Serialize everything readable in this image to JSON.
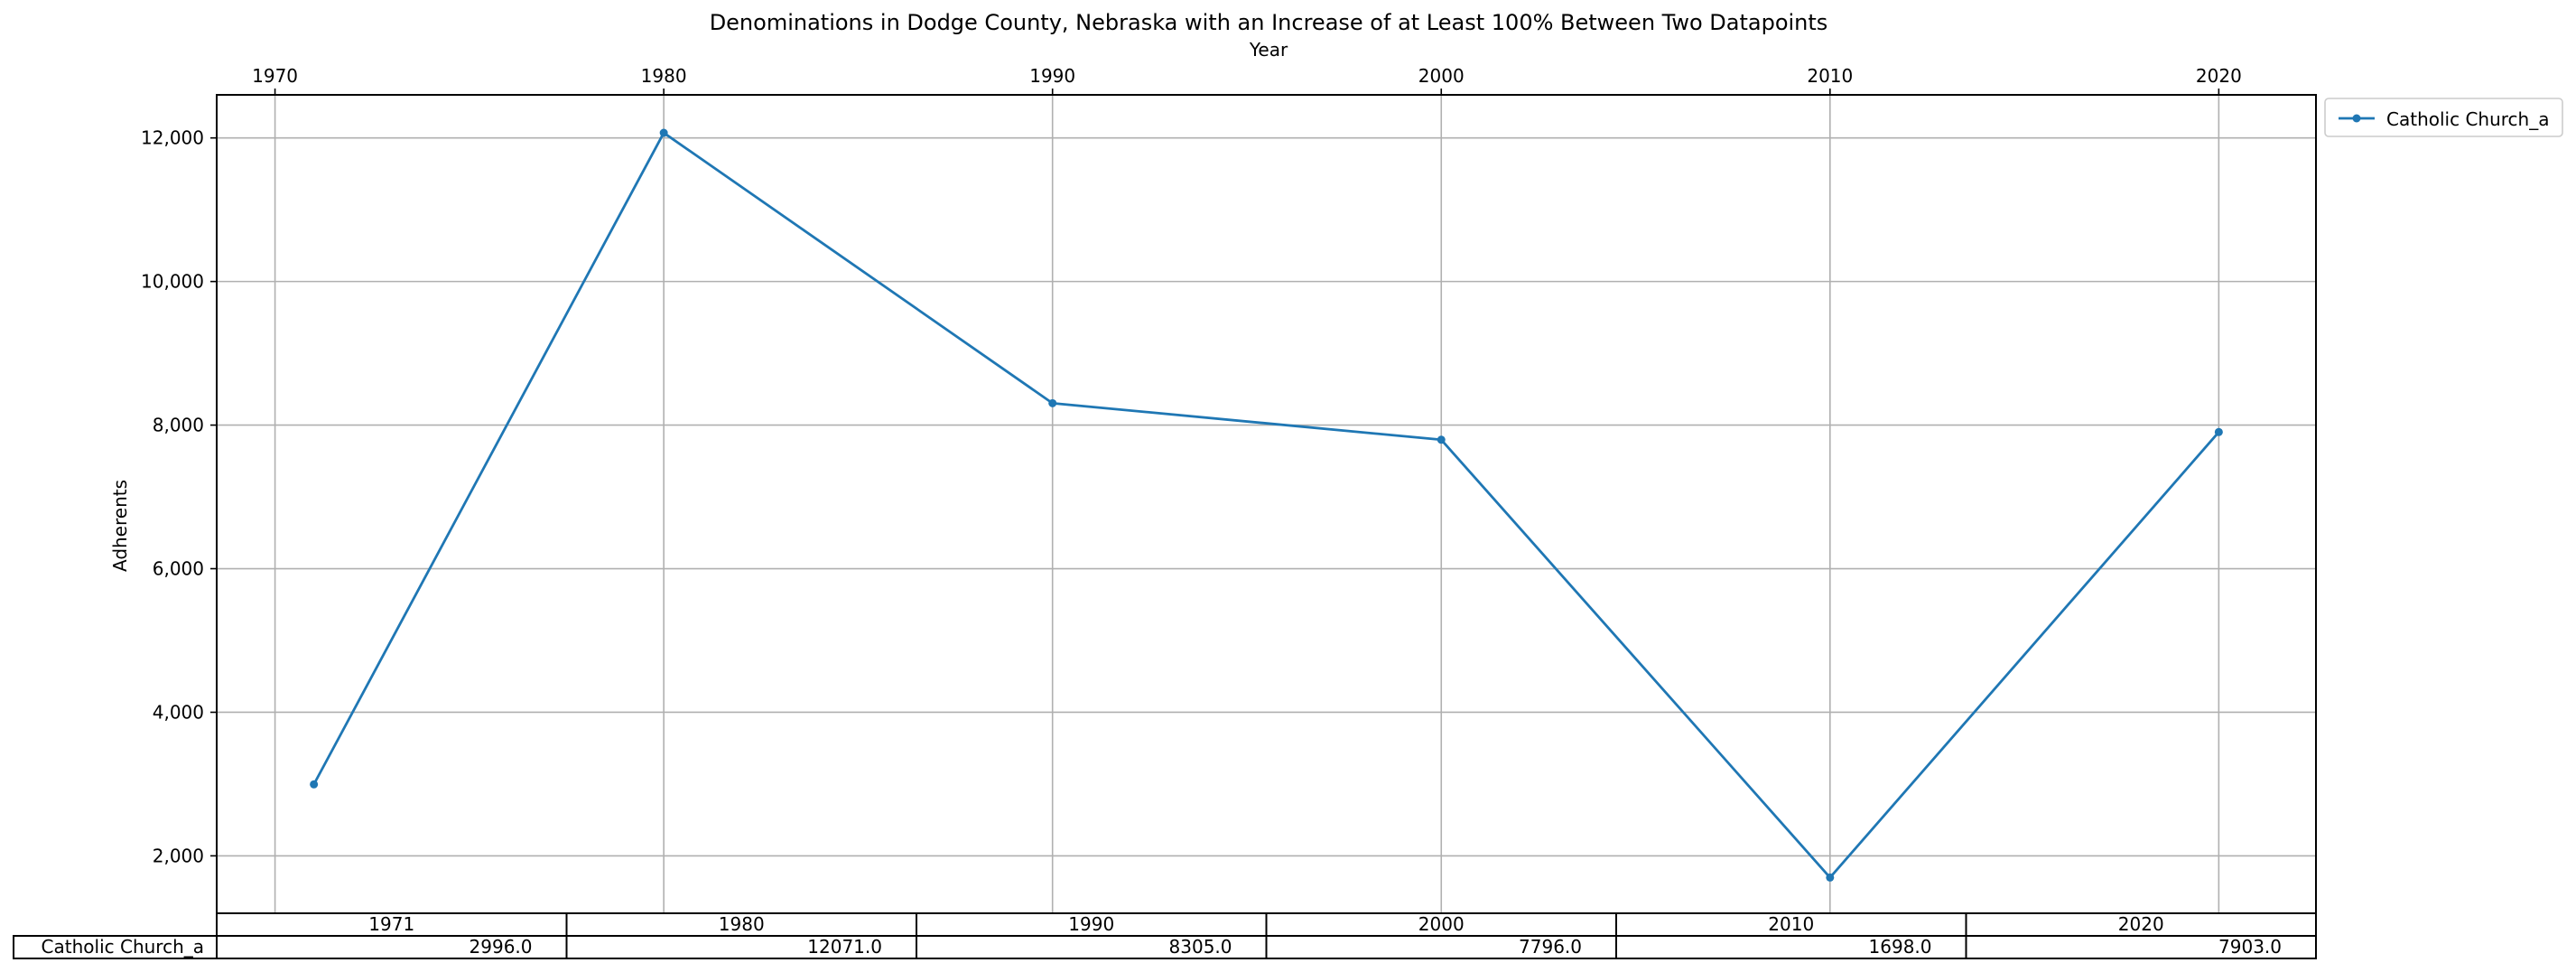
{
  "chart_data": {
    "type": "line",
    "title": "Denominations in Dodge County, Nebraska with an Increase of at Least 100% Between Two Datapoints",
    "xlabel": "Year",
    "ylabel": "Adherents",
    "x_ticks": [
      "1970",
      "1980",
      "1990",
      "2000",
      "2010",
      "2020"
    ],
    "y_ticks": [
      "2,000",
      "4,000",
      "6,000",
      "8,000",
      "10,000",
      "12,000"
    ],
    "xlim": [
      1968.5,
      2022.5
    ],
    "ylim": [
      1200,
      12600
    ],
    "grid": true,
    "legend_position": "outside-top-right",
    "series": [
      {
        "name": "Catholic Church_a",
        "color": "#1f77b4",
        "x": [
          1971,
          1980,
          1990,
          2000,
          2010,
          2020
        ],
        "y": [
          2996,
          12071,
          8305,
          7796,
          1698,
          7903
        ]
      }
    ],
    "table": {
      "columns": [
        "1971",
        "1980",
        "1990",
        "2000",
        "2010",
        "2020"
      ],
      "rows": [
        {
          "label": "Catholic Church_a",
          "cells": [
            "2996.0",
            "12071.0",
            "8305.0",
            "7796.0",
            "1698.0",
            "7903.0"
          ]
        }
      ]
    }
  }
}
